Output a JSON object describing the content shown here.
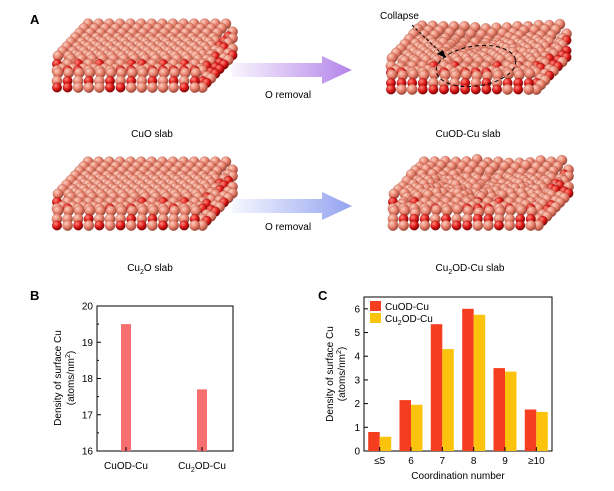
{
  "panel_labels": {
    "a": "A",
    "b": "B",
    "c": "C"
  },
  "panel_a": {
    "slab_cuo": "CuO slab",
    "slab_cuod": "CuOD-Cu slab",
    "slab_cu2o_prefix": "Cu",
    "slab_cu2o_sub": "2",
    "slab_cu2o_suffix": "O slab",
    "slab_cu2od_prefix": "Cu",
    "slab_cu2od_sub": "2",
    "slab_cu2od_suffix": "OD-Cu slab",
    "arrow_top_label": "O removal",
    "arrow_bottom_label": "O removal",
    "collapse_label": "Collapse",
    "colors": {
      "cu": "#e8806c",
      "o": "#e01818",
      "arrow_top": "#b07ee8",
      "arrow_bottom": "#8e9ef0"
    }
  },
  "chart_data": [
    {
      "type": "bar",
      "panel": "B",
      "categories": [
        "CuOD-Cu",
        "Cu2OD-Cu"
      ],
      "category_labels": [
        {
          "prefix": "CuOD-Cu",
          "sub": "",
          "suffix": ""
        },
        {
          "prefix": "Cu",
          "sub": "2",
          "suffix": "OD-Cu"
        }
      ],
      "values": [
        19.5,
        17.7
      ],
      "ylabel_line1": "Density of surface Cu",
      "ylabel_line2_pre": "(atoms/nm",
      "ylabel_line2_sup": "2",
      "ylabel_line2_post": ")",
      "ylim": [
        16,
        20
      ],
      "yticks": [
        "16",
        "17",
        "18",
        "19",
        "20"
      ],
      "color": "#f86f6f"
    },
    {
      "type": "bar",
      "panel": "C",
      "categories": [
        "≤5",
        "6",
        "7",
        "8",
        "9",
        "≥10"
      ],
      "series": [
        {
          "name": "CuOD-Cu",
          "name_prefix": "CuOD-Cu",
          "name_sub": "",
          "name_suffix": "",
          "color": "#f53d1f",
          "values": [
            0.8,
            2.15,
            5.35,
            6.0,
            3.5,
            1.75
          ]
        },
        {
          "name": "Cu2OD-Cu",
          "name_prefix": "Cu",
          "name_sub": "2",
          "name_suffix": "OD-Cu",
          "color": "#fcc30d",
          "values": [
            0.6,
            1.95,
            4.3,
            5.75,
            3.35,
            1.65
          ]
        }
      ],
      "xlabel": "Coordination number",
      "ylabel_line1": "Density of surface Cu",
      "ylabel_line2_pre": "(atoms/nm",
      "ylabel_line2_sup": "2",
      "ylabel_line2_post": ")",
      "ylim": [
        0,
        6.5
      ],
      "yticks": [
        "0",
        "1",
        "2",
        "3",
        "4",
        "5",
        "6"
      ],
      "legend": "top-left"
    }
  ]
}
